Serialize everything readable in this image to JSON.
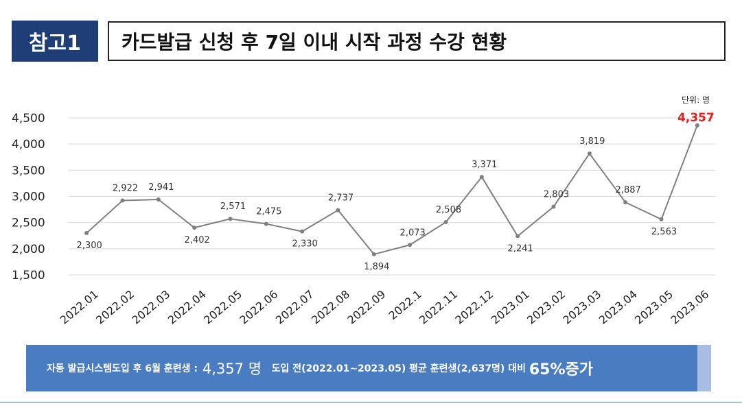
{
  "header": {
    "badge": "참고1",
    "title": "카드발급 신청 후 7일 이내 시작 과정 수강 현황"
  },
  "unit_label": "단위: 명",
  "chart_data": {
    "type": "line",
    "categories": [
      "2022.01",
      "2022.02",
      "2022.03",
      "2022.04",
      "2022.05",
      "2022.06",
      "2022.07",
      "2022.08",
      "2022.09",
      "2022.1",
      "2022.11",
      "2022.12",
      "2023.01",
      "2023.02",
      "2023.03",
      "2023.04",
      "2023.05",
      "2023.06"
    ],
    "values": [
      2300,
      2922,
      2941,
      2402,
      2571,
      2475,
      2330,
      2737,
      1894,
      2073,
      2508,
      3371,
      2241,
      2803,
      3819,
      2887,
      2563,
      4357
    ],
    "value_labels": [
      "2,300",
      "2,922",
      "2,941",
      "2,402",
      "2,571",
      "2,475",
      "2,330",
      "2,737",
      "1,894",
      "2,073",
      "2,508",
      "3,371",
      "2,241",
      "2,803",
      "3,819",
      "2,887",
      "2,563",
      "4,357"
    ],
    "yticks": [
      "1,500",
      "2,000",
      "2,500",
      "3,000",
      "3,500",
      "4,000",
      "4,500"
    ],
    "ylim": [
      1500,
      4500
    ],
    "grid": true,
    "highlight_last": true,
    "colors": {
      "line": "#808080",
      "marker": "#7f7f7f",
      "grid": "#d9d9d9",
      "highlight": "#e02020"
    }
  },
  "footer": {
    "part1": "자동 발급시스템도입 후 6월 훈련생 : ",
    "value1": "4,357 명",
    "part2": "   도입 전(2022.01~2023.05) 평균 훈련생(2,637명) 대비 ",
    "value2": "65%증가",
    "colors": {
      "bar": "#4a7cc2",
      "accent": "#a9bde4"
    }
  }
}
